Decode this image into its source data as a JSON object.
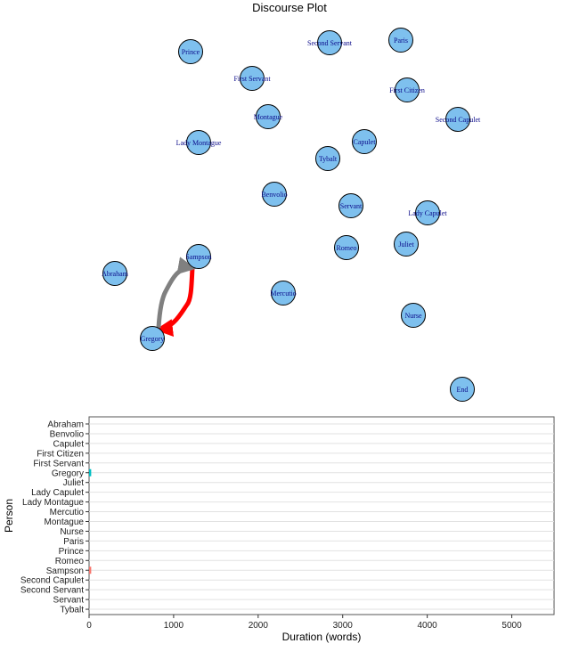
{
  "chart_data": [
    {
      "type": "network",
      "title": "Discourse Plot",
      "nodes": [
        {
          "id": "Prince",
          "label": "Prince"
        },
        {
          "id": "Second Servant",
          "label": "Second Servant"
        },
        {
          "id": "Paris",
          "label": "Paris"
        },
        {
          "id": "First Servant",
          "label": "First Servant"
        },
        {
          "id": "First Citizen",
          "label": "First Citizen"
        },
        {
          "id": "Montague",
          "label": "Montague"
        },
        {
          "id": "Second Capulet",
          "label": "Second Capulet"
        },
        {
          "id": "Lady Montague",
          "label": "Lady Montague"
        },
        {
          "id": "Capulet",
          "label": "Capulet"
        },
        {
          "id": "Tybalt",
          "label": "Tybalt"
        },
        {
          "id": "Benvolio",
          "label": "Benvolio"
        },
        {
          "id": "Servant",
          "label": "Servant"
        },
        {
          "id": "Lady Capulet",
          "label": "Lady Capulet"
        },
        {
          "id": "Romeo",
          "label": "Romeo"
        },
        {
          "id": "Juliet",
          "label": "Juliet"
        },
        {
          "id": "Abraham",
          "label": "Abraham"
        },
        {
          "id": "Sampson",
          "label": "Sampson"
        },
        {
          "id": "Mercutio",
          "label": "Mercutio"
        },
        {
          "id": "Nurse",
          "label": "Nurse"
        },
        {
          "id": "Gregory",
          "label": "Gregory"
        },
        {
          "id": "End",
          "label": "End"
        }
      ],
      "edges": [
        {
          "from": "Sampson",
          "to": "Gregory",
          "color": "#ff0000"
        },
        {
          "from": "Gregory",
          "to": "Sampson",
          "color": "#808080"
        }
      ],
      "node_color": "#7ec0ee"
    },
    {
      "type": "gantt",
      "xlabel": "Duration (words)",
      "ylabel": "Person",
      "xlim": [
        0,
        5500
      ],
      "xticks": [
        0,
        1000,
        2000,
        3000,
        4000,
        5000
      ],
      "categories": [
        "Abraham",
        "Benvolio",
        "Capulet",
        "First Citizen",
        "First Servant",
        "Gregory",
        "Juliet",
        "Lady Capulet",
        "Lady Montague",
        "Mercutio",
        "Montague",
        "Nurse",
        "Paris",
        "Prince",
        "Romeo",
        "Sampson",
        "Second Capulet",
        "Second Servant",
        "Servant",
        "Tybalt"
      ],
      "segments": [
        {
          "person": "Gregory",
          "start": 0,
          "end": 25,
          "color": "#00bfc4"
        },
        {
          "person": "Sampson",
          "start": 0,
          "end": 25,
          "color": "#f8766d"
        }
      ]
    }
  ]
}
